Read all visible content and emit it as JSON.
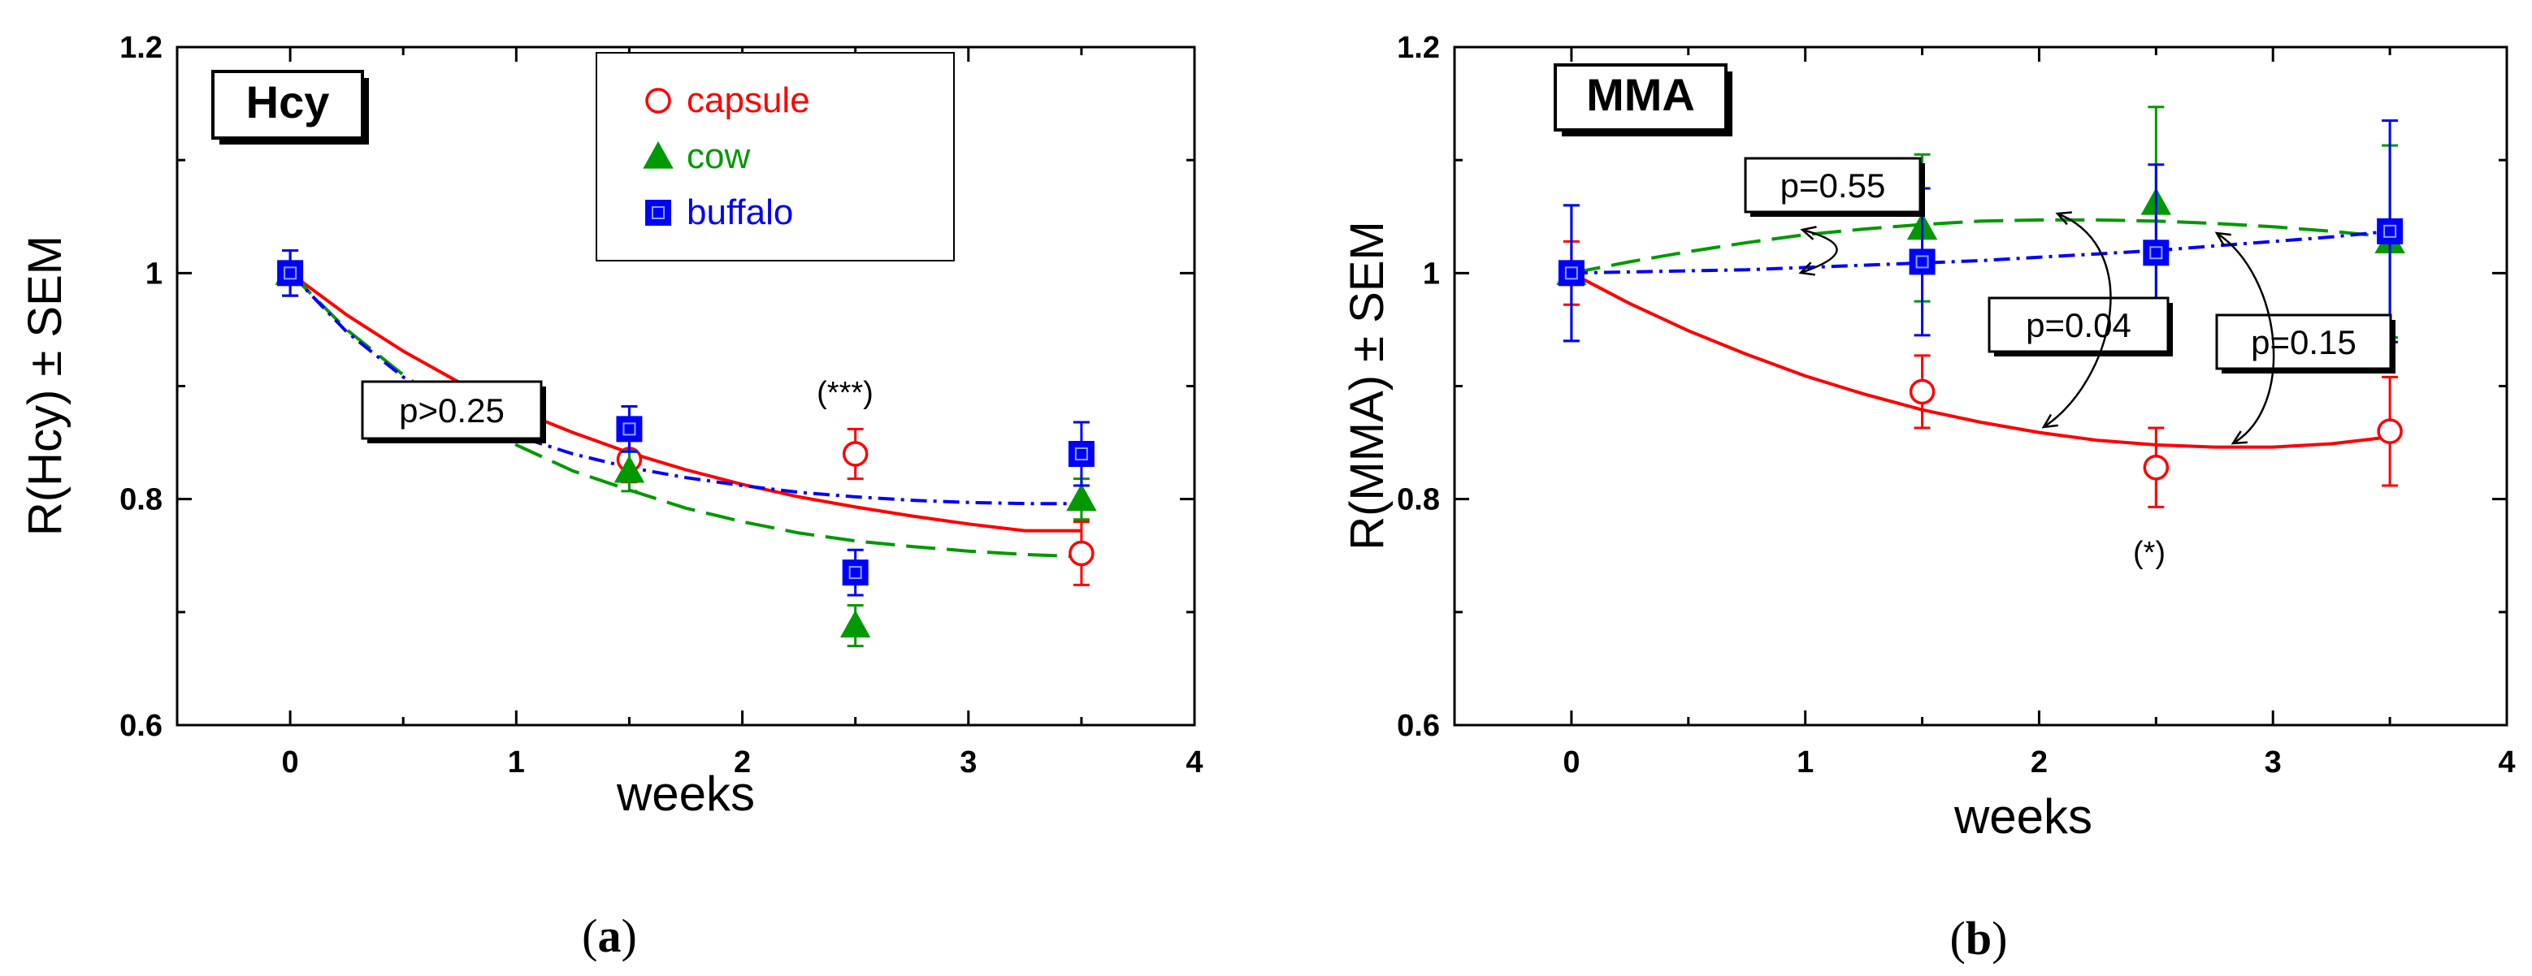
{
  "chart_data": [
    {
      "type": "scatter",
      "panel_label": "(a)",
      "panel_prefix": "(",
      "panel_letter": "a",
      "panel_suffix": ")",
      "title": "Hcy",
      "xlabel": "weeks",
      "ylabel": "R(Hcy) ± SEM",
      "xlim": [
        -0.5,
        4
      ],
      "ylim": [
        0.6,
        1.2
      ],
      "xticks": [
        0,
        1,
        2,
        3,
        4
      ],
      "xtick_labels": [
        "0",
        "1",
        "2",
        "3",
        "4"
      ],
      "yticks": [
        0.6,
        0.8,
        1,
        1.2
      ],
      "ytick_labels": [
        "0.6",
        "0.8",
        "1",
        "1.2"
      ],
      "legend": {
        "position": "top-right",
        "entries": [
          "capsule",
          "cow",
          "buffalo"
        ]
      },
      "series": [
        {
          "name": "capsule",
          "color": "#ff0000",
          "marker": "circle-open",
          "line": "solid",
          "x": [
            0,
            1.5,
            2.5,
            3.5
          ],
          "y": [
            1.0,
            0.835,
            0.84,
            0.752
          ],
          "err": [
            0.02,
            0.02,
            0.022,
            0.028
          ],
          "fit": {
            "x": [
              0,
              0.25,
              0.5,
              0.75,
              1,
              1.25,
              1.5,
              1.75,
              2,
              2.25,
              2.5,
              2.75,
              3,
              3.25,
              3.5
            ],
            "y": [
              1.0,
              0.963,
              0.931,
              0.903,
              0.879,
              0.859,
              0.841,
              0.826,
              0.813,
              0.802,
              0.793,
              0.785,
              0.778,
              0.772,
              0.772
            ]
          }
        },
        {
          "name": "cow",
          "color": "#009900",
          "marker": "triangle",
          "line": "dashed",
          "x": [
            0,
            1.5,
            2.5,
            3.5
          ],
          "y": [
            1.0,
            0.825,
            0.688,
            0.8
          ],
          "err": [
            0.02,
            0.018,
            0.018,
            0.018
          ],
          "fit": {
            "x": [
              0,
              0.25,
              0.5,
              0.75,
              1,
              1.25,
              1.5,
              1.75,
              2,
              2.25,
              2.5,
              2.75,
              3,
              3.25,
              3.5
            ],
            "y": [
              1.0,
              0.95,
              0.91,
              0.876,
              0.848,
              0.825,
              0.808,
              0.792,
              0.78,
              0.77,
              0.763,
              0.758,
              0.754,
              0.751,
              0.749
            ]
          }
        },
        {
          "name": "buffalo",
          "color": "#0000ff",
          "marker": "square",
          "line": "dash-dot",
          "x": [
            0,
            1.5,
            2.5,
            3.5
          ],
          "y": [
            1.0,
            0.862,
            0.735,
            0.84
          ],
          "err": [
            0.02,
            0.02,
            0.02,
            0.028
          ],
          "fit": {
            "x": [
              0,
              0.25,
              0.5,
              0.75,
              1,
              1.25,
              1.5,
              1.75,
              2,
              2.25,
              2.5,
              2.75,
              3,
              3.25,
              3.5
            ],
            "y": [
              1.0,
              0.948,
              0.908,
              0.878,
              0.856,
              0.84,
              0.828,
              0.819,
              0.812,
              0.806,
              0.802,
              0.799,
              0.797,
              0.796,
              0.796
            ]
          }
        }
      ],
      "annotations": [
        {
          "id": "pvalue",
          "text": "p>0.25",
          "boxed": true
        },
        {
          "id": "significance",
          "text": "(***)",
          "boxed": false
        }
      ]
    },
    {
      "type": "scatter",
      "panel_label": "(b)",
      "panel_prefix": "(",
      "panel_letter": "b",
      "panel_suffix": ")",
      "title": "MMA",
      "xlabel": "weeks",
      "ylabel": "R(MMA) ± SEM",
      "xlim": [
        -0.5,
        4
      ],
      "ylim": [
        0.6,
        1.2
      ],
      "xticks": [
        0,
        1,
        2,
        3,
        4
      ],
      "xtick_labels": [
        "0",
        "1",
        "2",
        "3",
        "4"
      ],
      "yticks": [
        0.6,
        0.8,
        1,
        1.2
      ],
      "ytick_labels": [
        "0.6",
        "0.8",
        "1",
        "1.2"
      ],
      "series": [
        {
          "name": "capsule",
          "color": "#ff0000",
          "marker": "circle-open",
          "line": "solid",
          "x": [
            0,
            1.5,
            2.5,
            3.5
          ],
          "y": [
            1.0,
            0.895,
            0.828,
            0.86
          ],
          "err": [
            0.028,
            0.032,
            0.035,
            0.048
          ],
          "fit": {
            "x": [
              0,
              0.25,
              0.5,
              0.75,
              1,
              1.25,
              1.5,
              1.75,
              2,
              2.25,
              2.5,
              2.75,
              3,
              3.25,
              3.5
            ],
            "y": [
              1.0,
              0.973,
              0.949,
              0.928,
              0.909,
              0.893,
              0.879,
              0.868,
              0.859,
              0.852,
              0.848,
              0.846,
              0.846,
              0.849,
              0.855
            ]
          }
        },
        {
          "name": "cow",
          "color": "#009900",
          "marker": "triangle",
          "line": "dashed",
          "x": [
            0,
            1.5,
            2.5,
            3.5
          ],
          "y": [
            1.0,
            1.04,
            1.062,
            1.028
          ],
          "err": [
            0.06,
            0.065,
            0.085,
            0.085
          ],
          "fit": {
            "x": [
              0,
              0.25,
              0.5,
              0.75,
              1,
              1.25,
              1.5,
              1.75,
              2,
              2.25,
              2.5,
              2.75,
              3,
              3.25,
              3.5
            ],
            "y": [
              1.0,
              1.01,
              1.019,
              1.027,
              1.034,
              1.039,
              1.043,
              1.046,
              1.047,
              1.047,
              1.046,
              1.044,
              1.041,
              1.037,
              1.032
            ]
          }
        },
        {
          "name": "buffalo",
          "color": "#0000ff",
          "marker": "square",
          "line": "dash-dot",
          "x": [
            0,
            1.5,
            2.5,
            3.5
          ],
          "y": [
            1.0,
            1.01,
            1.018,
            1.037
          ],
          "err": [
            0.06,
            0.065,
            0.078,
            0.098
          ],
          "fit": {
            "x": [
              0,
              0.25,
              0.5,
              0.75,
              1,
              1.25,
              1.5,
              1.75,
              2,
              2.25,
              2.5,
              2.75,
              3,
              3.25,
              3.5
            ],
            "y": [
              1.0,
              1.001,
              1.002,
              1.003,
              1.005,
              1.007,
              1.009,
              1.011,
              1.014,
              1.017,
              1.02,
              1.024,
              1.028,
              1.032,
              1.037
            ]
          }
        }
      ],
      "annotations": [
        {
          "id": "p1",
          "text": "p=0.55",
          "boxed": true
        },
        {
          "id": "p2",
          "text": "p=0.04",
          "boxed": true
        },
        {
          "id": "p3",
          "text": "p=0.15",
          "boxed": true
        },
        {
          "id": "significance",
          "text": "(*)",
          "boxed": false
        }
      ]
    }
  ]
}
